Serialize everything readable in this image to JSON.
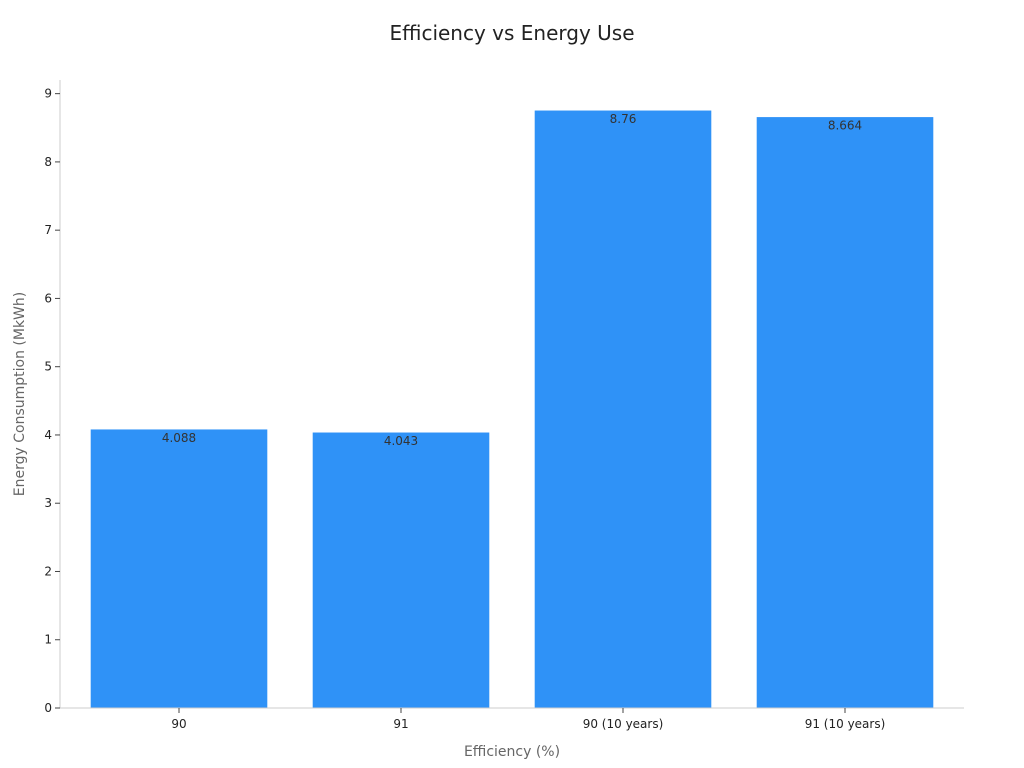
{
  "chart_data": {
    "type": "bar",
    "title": "Efficiency vs Energy Use",
    "xlabel": "Efficiency (%)",
    "ylabel": "Energy Consumption (MkWh)",
    "categories": [
      "90",
      "91",
      "90 (10 years)",
      "91 (10 years)"
    ],
    "values": [
      4.088,
      4.043,
      8.76,
      8.664
    ],
    "data_labels": [
      "4.088",
      "4.043",
      "8.76",
      "8.664"
    ],
    "ylim": [
      0,
      9.2
    ],
    "yticks": [
      0,
      1,
      2,
      3,
      4,
      5,
      6,
      7,
      8,
      9
    ],
    "ytick_labels": [
      "0",
      "1",
      "2",
      "3",
      "4",
      "5",
      "6",
      "7",
      "8",
      "9"
    ],
    "grid": false,
    "legend": "none",
    "bar_color": "#2f92f7"
  }
}
